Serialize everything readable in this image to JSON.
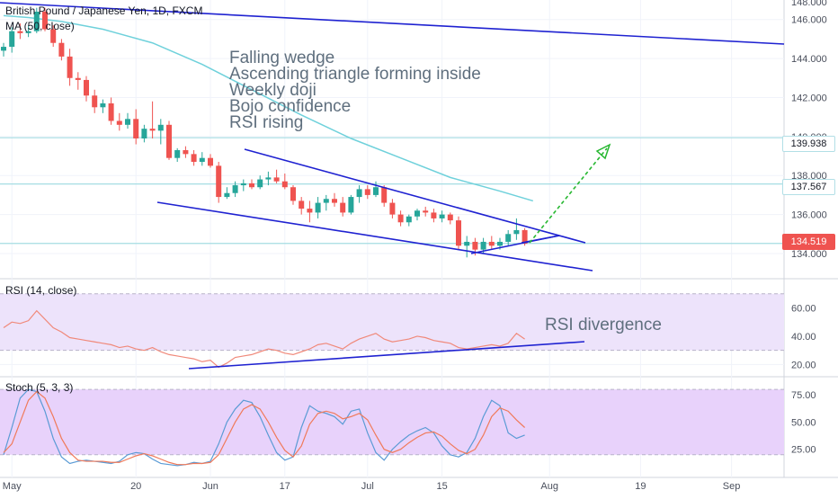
{
  "header": {
    "symbol_title": "British Pound / Japanese Yen, 1D, FXCM",
    "ma_label": "MA (50, close)",
    "rsi_label": "RSI (14, close)",
    "stoch_label": "Stoch (5, 3, 3)"
  },
  "annotations": {
    "main_notes": [
      "Falling wedge",
      "Ascending triangle forming inside",
      "Weekly doji",
      "Bojo confidence",
      "RSI rising"
    ],
    "rsi_note": "RSI divergence"
  },
  "price_tags": {
    "level_1": "139.938",
    "level_2": "137.567",
    "last_price": "134.519"
  },
  "colors": {
    "up": "#26a69a",
    "down": "#ef5350",
    "ma": "#6fd1db",
    "trendline": "#1f22d1",
    "target_arrow": "#25b72f",
    "rsi_line": "#f0897a",
    "rsi_band": "#ede3fb",
    "stoch_k": "#5b9bd5",
    "stoch_d": "#f07a5a",
    "stoch_band": "#e8d2fb"
  },
  "chart_data": [
    {
      "type": "candlestick",
      "title": "British Pound / Japanese Yen, 1D, FXCM",
      "ylim": [
        132.8,
        147.0
      ],
      "y_ticks": [
        134.0,
        136.0,
        138.0,
        140.0,
        142.0,
        144.0,
        146.0
      ],
      "y_tick_labels": [
        "134.000",
        "136.000",
        "138.000",
        "140.000",
        "142.000",
        "144.000",
        "146.000"
      ],
      "horizontal_levels": [
        139.938,
        137.567,
        134.519
      ],
      "x_ticks": [
        "May",
        "20",
        "Jun",
        "17",
        "Jul",
        "15",
        "Aug",
        "19",
        "Sep"
      ],
      "candles_ohlc": [
        [
          144.4,
          144.8,
          144.1,
          144.6
        ],
        [
          144.6,
          145.6,
          144.3,
          145.4
        ],
        [
          145.4,
          145.8,
          145.0,
          145.3
        ],
        [
          145.3,
          145.7,
          145.1,
          145.4
        ],
        [
          145.4,
          146.6,
          145.3,
          146.4
        ],
        [
          146.4,
          146.6,
          145.4,
          145.5
        ],
        [
          145.5,
          145.7,
          144.6,
          144.8
        ],
        [
          144.8,
          145.0,
          143.9,
          144.1
        ],
        [
          144.1,
          144.5,
          142.6,
          143.0
        ],
        [
          143.0,
          143.3,
          142.4,
          142.9
        ],
        [
          142.9,
          143.1,
          141.8,
          142.1
        ],
        [
          142.1,
          142.4,
          141.2,
          141.5
        ],
        [
          141.5,
          141.9,
          141.2,
          141.7
        ],
        [
          141.7,
          142.0,
          140.6,
          140.8
        ],
        [
          140.8,
          141.2,
          140.3,
          140.6
        ],
        [
          140.6,
          141.2,
          140.4,
          140.9
        ],
        [
          140.9,
          141.4,
          139.6,
          139.9
        ],
        [
          139.9,
          140.6,
          139.7,
          140.4
        ],
        [
          140.4,
          141.8,
          139.9,
          140.3
        ],
        [
          140.3,
          140.9,
          139.6,
          140.6
        ],
        [
          140.6,
          140.8,
          138.8,
          138.9
        ],
        [
          138.9,
          139.4,
          138.7,
          139.3
        ],
        [
          139.3,
          139.5,
          138.9,
          139.1
        ],
        [
          139.1,
          139.3,
          138.5,
          138.7
        ],
        [
          138.7,
          139.2,
          138.5,
          138.9
        ],
        [
          138.9,
          139.1,
          138.4,
          138.5
        ],
        [
          138.5,
          138.7,
          136.6,
          136.9
        ],
        [
          136.9,
          137.4,
          136.8,
          137.1
        ],
        [
          137.1,
          137.7,
          136.9,
          137.5
        ],
        [
          137.5,
          137.8,
          137.2,
          137.6
        ],
        [
          137.6,
          137.8,
          137.3,
          137.4
        ],
        [
          137.4,
          138.0,
          137.3,
          137.8
        ],
        [
          137.8,
          138.2,
          137.5,
          137.9
        ],
        [
          137.9,
          138.3,
          137.6,
          137.7
        ],
        [
          137.7,
          138.1,
          137.3,
          137.4
        ],
        [
          137.4,
          137.5,
          136.5,
          136.7
        ],
        [
          136.7,
          136.9,
          136.0,
          136.3
        ],
        [
          136.3,
          136.7,
          135.6,
          136.1
        ],
        [
          136.1,
          136.9,
          135.8,
          136.6
        ],
        [
          136.6,
          137.0,
          136.2,
          136.8
        ],
        [
          136.8,
          137.1,
          136.4,
          136.6
        ],
        [
          136.6,
          136.9,
          135.9,
          136.1
        ],
        [
          136.1,
          137.0,
          136.0,
          136.9
        ],
        [
          136.9,
          137.5,
          136.6,
          137.3
        ],
        [
          137.3,
          137.5,
          136.8,
          137.0
        ],
        [
          137.0,
          137.7,
          136.9,
          137.4
        ],
        [
          137.4,
          137.5,
          136.4,
          136.6
        ],
        [
          136.6,
          136.8,
          135.8,
          136.0
        ],
        [
          136.0,
          136.2,
          135.4,
          135.6
        ],
        [
          135.6,
          136.0,
          135.4,
          135.9
        ],
        [
          135.9,
          136.3,
          135.7,
          136.2
        ],
        [
          136.2,
          136.4,
          135.9,
          136.1
        ],
        [
          136.1,
          136.3,
          135.6,
          135.8
        ],
        [
          135.8,
          136.2,
          135.6,
          136.0
        ],
        [
          136.0,
          136.1,
          135.5,
          135.7
        ],
        [
          135.7,
          135.9,
          134.2,
          134.4
        ],
        [
          134.4,
          134.9,
          133.8,
          134.6
        ],
        [
          134.6,
          134.8,
          133.9,
          134.2
        ],
        [
          134.2,
          134.8,
          134.0,
          134.6
        ],
        [
          134.6,
          134.9,
          134.2,
          134.4
        ],
        [
          134.4,
          134.8,
          134.2,
          134.6
        ],
        [
          134.6,
          135.2,
          134.4,
          135.0
        ],
        [
          135.0,
          135.8,
          134.7,
          135.2
        ],
        [
          135.2,
          135.3,
          134.4,
          134.5
        ]
      ],
      "ma50": [
        {
          "x": 0,
          "y": 146.2
        },
        {
          "x": 3,
          "y": 146.1
        },
        {
          "x": 7,
          "y": 145.9
        },
        {
          "x": 12,
          "y": 145.5
        },
        {
          "x": 18,
          "y": 144.8
        },
        {
          "x": 24,
          "y": 143.7
        },
        {
          "x": 30,
          "y": 142.4
        },
        {
          "x": 36,
          "y": 141.1
        },
        {
          "x": 42,
          "y": 139.9
        },
        {
          "x": 48,
          "y": 138.9
        },
        {
          "x": 54,
          "y": 137.9
        },
        {
          "x": 60,
          "y": 137.2
        },
        {
          "x": 64,
          "y": 136.7
        }
      ]
    },
    {
      "type": "line",
      "title": "RSI (14, close)",
      "ylim": [
        12,
        80
      ],
      "y_ticks": [
        20.0,
        40.0,
        60.0
      ],
      "y_tick_labels": [
        "20.00",
        "40.00",
        "60.00"
      ],
      "band": [
        30,
        70
      ],
      "values": [
        46,
        50,
        49,
        51,
        58,
        52,
        46,
        43,
        39,
        38,
        37,
        36,
        35,
        34,
        32,
        33,
        31,
        30,
        32,
        29,
        27,
        26,
        25,
        24,
        22,
        23,
        18,
        21,
        25,
        26,
        27,
        29,
        31,
        30,
        28,
        27,
        29,
        31,
        34,
        35,
        33,
        31,
        35,
        38,
        40,
        42,
        38,
        36,
        37,
        38,
        40,
        39,
        37,
        36,
        35,
        32,
        31,
        32,
        33,
        34,
        33,
        35,
        42,
        38
      ]
    },
    {
      "type": "line",
      "title": "Stoch (5, 3, 3)",
      "ylim": [
        0,
        90
      ],
      "y_ticks": [
        25.0,
        50.0,
        75.0
      ],
      "y_tick_labels": [
        "25.00",
        "50.00",
        "75.00"
      ],
      "band": [
        20,
        80
      ],
      "series": [
        {
          "values": [
            20,
            45,
            72,
            80,
            78,
            60,
            35,
            18,
            12,
            14,
            15,
            14,
            13,
            12,
            14,
            20,
            22,
            21,
            16,
            12,
            11,
            10,
            11,
            13,
            12,
            14,
            30,
            50,
            62,
            70,
            68,
            55,
            38,
            22,
            15,
            18,
            45,
            65,
            60,
            58,
            55,
            48,
            60,
            62,
            40,
            22,
            15,
            25,
            32,
            38,
            42,
            45,
            40,
            28,
            20,
            18,
            22,
            35,
            55,
            70,
            65,
            40,
            35,
            38
          ]
        },
        {
          "values": [
            22,
            30,
            50,
            70,
            78,
            72,
            55,
            35,
            22,
            15,
            14,
            14,
            14,
            13,
            13,
            16,
            19,
            21,
            19,
            16,
            13,
            11,
            11,
            12,
            12,
            13,
            20,
            35,
            50,
            62,
            66,
            62,
            50,
            36,
            24,
            18,
            28,
            48,
            58,
            60,
            58,
            53,
            55,
            58,
            52,
            38,
            25,
            22,
            25,
            31,
            36,
            40,
            41,
            37,
            30,
            24,
            21,
            25,
            38,
            55,
            63,
            60,
            52,
            45
          ]
        }
      ]
    }
  ]
}
